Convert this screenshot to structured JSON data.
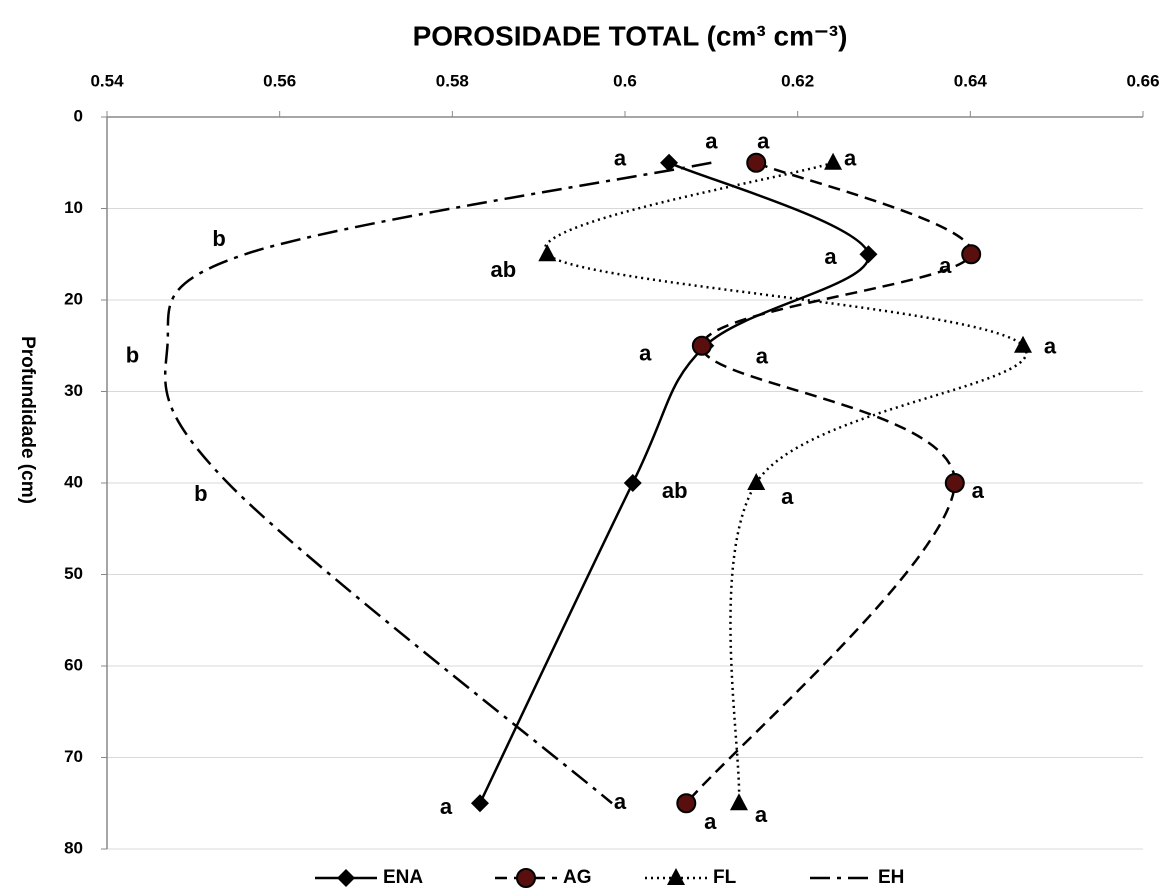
{
  "chart_data": {
    "type": "line",
    "title": "POROSIDADE TOTAL (cm³ cm⁻³)",
    "ylabel": "Profundidade (cm)",
    "y": [
      5,
      15,
      25,
      40,
      75
    ],
    "series": [
      {
        "name": "ENA",
        "color": "#000000",
        "line_style": "solid",
        "marker": "diamond",
        "values": [
          0.6051,
          0.6282,
          0.6093,
          0.6009,
          0.5832
        ],
        "labels": [
          "a",
          "a",
          "a",
          "ab",
          "a"
        ]
      },
      {
        "name": "AG",
        "color": "#000000",
        "marker_fill": "#5a0f0f",
        "line_style": "dashed",
        "marker": "circle",
        "values": [
          0.6152,
          0.6401,
          0.6089,
          0.6382,
          0.6071
        ],
        "labels": [
          "a",
          "a",
          "a",
          "a",
          "a"
        ]
      },
      {
        "name": "FL",
        "color": "#000000",
        "line_style": "dotted",
        "marker": "triangle",
        "values": [
          0.6241,
          0.591,
          0.6461,
          0.6152,
          0.6132
        ],
        "labels": [
          "a",
          "ab",
          "a",
          "a",
          "a"
        ]
      },
      {
        "name": "EH",
        "color": "#000000",
        "line_style": "dashdot",
        "marker": "none",
        "values": [
          0.61,
          0.556,
          0.547,
          0.554,
          0.5985
        ],
        "labels": [
          "a",
          "b",
          "b",
          "b",
          "a"
        ]
      }
    ],
    "xlim": [
      0.54,
      0.66
    ],
    "xticks": [
      0.54,
      0.56,
      0.58,
      0.6,
      0.62,
      0.64,
      0.66
    ],
    "ylim": [
      0,
      80
    ],
    "yticks": [
      0,
      10,
      20,
      30,
      40,
      50,
      60,
      70,
      80
    ],
    "y_inverted": true,
    "grid": true,
    "legend": "bottom"
  }
}
